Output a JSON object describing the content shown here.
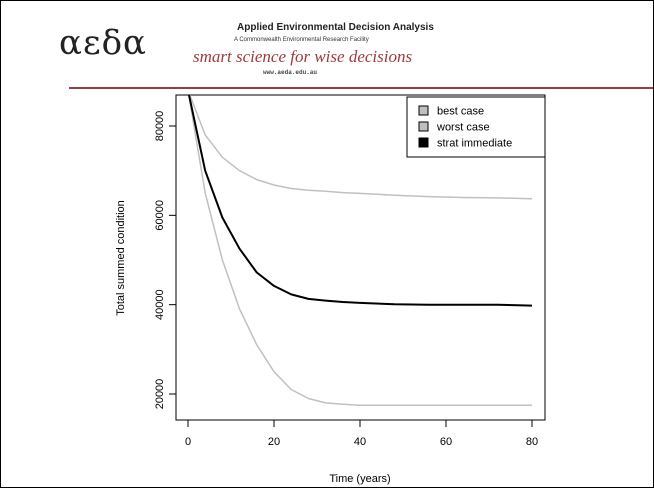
{
  "header": {
    "logo_text": "αεδα",
    "title": "Applied Environmental Decision Analysis",
    "subtitle": "A Commonwealth Environmental Research Facility",
    "tagline": "smart science for wise decisions",
    "url": "www.aeda.edu.au"
  },
  "chart_data": {
    "type": "line",
    "title": "",
    "xlabel": "Time (years)",
    "ylabel": "Total summed condition",
    "xlim": [
      0,
      80
    ],
    "ylim": [
      16000,
      88000
    ],
    "xticks": [
      0,
      20,
      40,
      60,
      80
    ],
    "yticks": [
      20000,
      40000,
      60000,
      80000
    ],
    "grid": false,
    "legend_position": "top-right",
    "series": [
      {
        "name": "best case",
        "color": "#c0c0c0",
        "x": [
          0,
          4,
          8,
          12,
          16,
          20,
          24,
          28,
          32,
          36,
          40,
          48,
          56,
          64,
          72,
          80
        ],
        "y": [
          88000,
          78000,
          73000,
          70000,
          68000,
          66800,
          66000,
          65600,
          65400,
          65100,
          64900,
          64500,
          64200,
          64000,
          63900,
          63700
        ]
      },
      {
        "name": "worst case",
        "color": "#c0c0c0",
        "x": [
          0,
          4,
          8,
          12,
          16,
          20,
          24,
          28,
          32,
          36,
          40,
          48,
          56,
          64,
          72,
          80
        ],
        "y": [
          88000,
          65000,
          50000,
          39000,
          31000,
          25000,
          21000,
          19000,
          18000,
          17700,
          17500,
          17500,
          17500,
          17500,
          17500,
          17500
        ]
      },
      {
        "name": "strat immediate",
        "color": "#000000",
        "x": [
          0,
          4,
          8,
          12,
          16,
          20,
          24,
          28,
          32,
          36,
          40,
          48,
          56,
          64,
          72,
          80
        ],
        "y": [
          88000,
          70000,
          59500,
          52500,
          47200,
          44200,
          42300,
          41300,
          40900,
          40600,
          40400,
          40100,
          40000,
          40000,
          40000,
          39800
        ]
      }
    ]
  }
}
